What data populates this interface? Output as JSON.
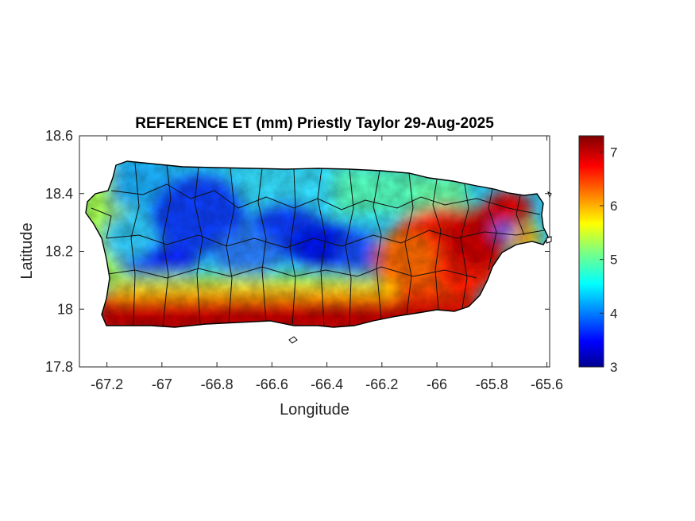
{
  "title": "REFERENCE ET (mm) Priestly Taylor 29-Aug-2025",
  "xlabel": "Longitude",
  "ylabel": "Latitude",
  "x_ticks": [
    "-67.2",
    "-67",
    "-66.8",
    "-66.6",
    "-66.4",
    "-66.2",
    "-66",
    "-65.8",
    "-65.6"
  ],
  "y_ticks": [
    "18.6",
    "18.4",
    "18.2",
    "18",
    "17.8"
  ],
  "colorbar": {
    "ticks": [
      "7",
      "6",
      "5",
      "4",
      "3"
    ],
    "min": 3,
    "max": 7.3,
    "colormap": "jet"
  },
  "chart_data": {
    "type": "heatmap",
    "title": "REFERENCE ET (mm) Priestly Taylor 29-Aug-2025",
    "xlabel": "Longitude",
    "ylabel": "Latitude",
    "xlim": [
      -67.3,
      -65.59
    ],
    "ylim": [
      17.8,
      18.6
    ],
    "x_ticks": [
      -67.2,
      -67,
      -66.8,
      -66.6,
      -66.4,
      -66.2,
      -66,
      -65.8,
      -65.6
    ],
    "y_ticks": [
      17.8,
      18.0,
      18.2,
      18.4,
      18.6
    ],
    "colorbar_range": [
      3,
      7.3
    ],
    "colorbar_ticks": [
      3,
      4,
      5,
      6,
      7
    ],
    "colormap": "jet",
    "grid": false,
    "description_of_field": [
      {
        "region": "south coast",
        "value_approx": 7.0
      },
      {
        "region": "central interior mountains",
        "value_approx": 3.8
      },
      {
        "region": "north coast",
        "value_approx": 4.8
      },
      {
        "region": "far west",
        "value_approx": 5.3
      },
      {
        "region": "eastern interior",
        "value_approx": 6.6
      },
      {
        "region": "northeast corner",
        "value_approx": 6.8
      }
    ]
  }
}
